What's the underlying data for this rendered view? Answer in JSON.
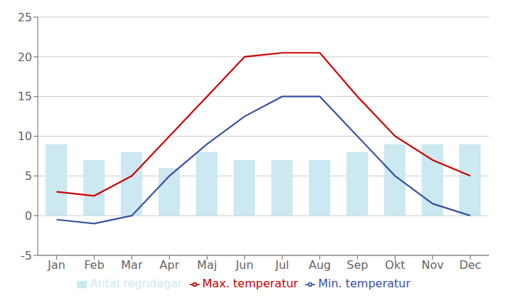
{
  "chart_data": {
    "type": "bar",
    "categories": [
      "Jan",
      "Feb",
      "Mar",
      "Apr",
      "Maj",
      "Jun",
      "Jul",
      "Aug",
      "Sep",
      "Okt",
      "Nov",
      "Dec"
    ],
    "series": [
      {
        "name": "Antal regndagar",
        "type": "bar",
        "color": "#cce8f0",
        "values": [
          9,
          7,
          8,
          6,
          8,
          7,
          7,
          7,
          8,
          9,
          9,
          9
        ]
      },
      {
        "name": "Min. temperatur",
        "type": "line",
        "color": "#3a52a0",
        "values": [
          -0.5,
          -1,
          0,
          5,
          9,
          12.5,
          15,
          15,
          10,
          5,
          1.5,
          0
        ]
      },
      {
        "name": "Max. temperatur",
        "type": "line",
        "color": "#cc0000",
        "values": [
          3,
          2.5,
          5,
          10,
          15,
          20,
          20.5,
          20.5,
          15,
          10,
          7,
          5
        ]
      }
    ],
    "ylim": [
      -5,
      25
    ],
    "yticks": [
      -5,
      0,
      5,
      10,
      15,
      20,
      25
    ],
    "grid": true,
    "legend": "bottom"
  }
}
